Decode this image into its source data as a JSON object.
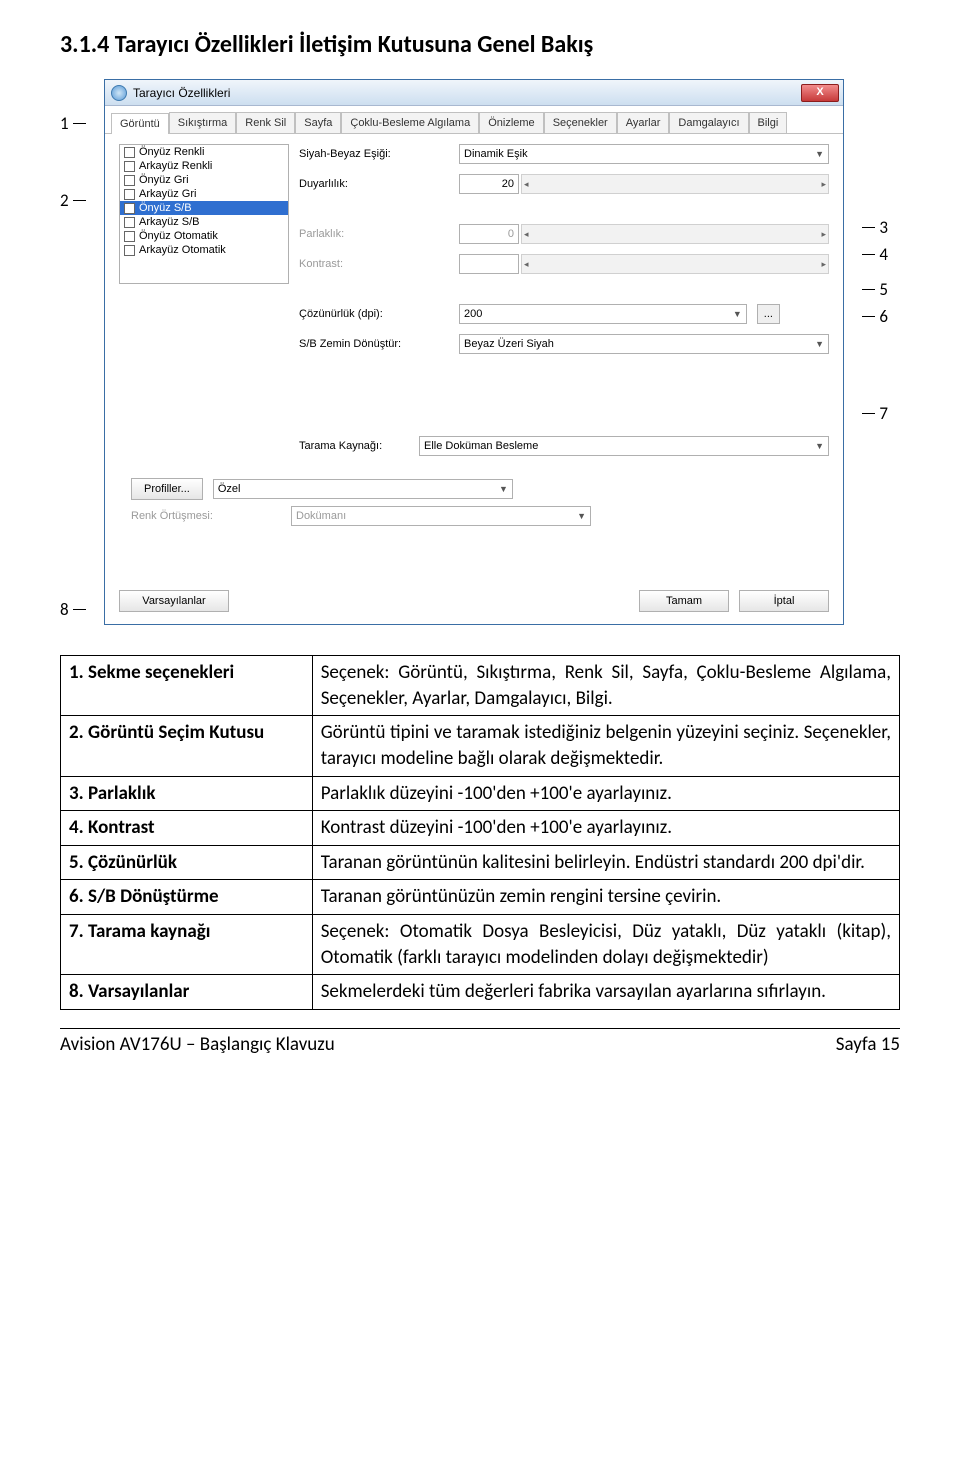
{
  "heading": "3.1.4 Tarayıcı Özellikleri İletişim Kutusuna Genel Bakış",
  "annot": {
    "left": [
      "1",
      "2",
      "8"
    ],
    "right": [
      "3",
      "4",
      "5",
      "6",
      "7"
    ]
  },
  "dialog": {
    "title": "Tarayıcı Özellikleri",
    "close": "X",
    "tabs": [
      "Görüntü",
      "Sıkıştırma",
      "Renk Sil",
      "Sayfa",
      "Çoklu-Besleme Algılama",
      "Önizleme",
      "Seçenekler",
      "Ayarlar",
      "Damgalayıcı",
      "Bilgi"
    ],
    "list": [
      {
        "label": "Önyüz Renkli",
        "checked": false,
        "selected": false
      },
      {
        "label": "Arkayüz Renkli",
        "checked": false,
        "selected": false
      },
      {
        "label": "Önyüz Gri",
        "checked": false,
        "selected": false
      },
      {
        "label": "Arkayüz Gri",
        "checked": false,
        "selected": false
      },
      {
        "label": "Önyüz S/B",
        "checked": true,
        "selected": true
      },
      {
        "label": "Arkayüz S/B",
        "checked": false,
        "selected": false
      },
      {
        "label": "Önyüz Otomatik",
        "checked": false,
        "selected": false
      },
      {
        "label": "Arkayüz Otomatik",
        "checked": false,
        "selected": false
      }
    ],
    "props": {
      "thresholdLabel": "Siyah-Beyaz Eşiği:",
      "thresholdValue": "Dinamik Eşik",
      "sensitivityLabel": "Duyarlılık:",
      "sensitivityValue": "20",
      "brightnessLabel": "Parlaklık:",
      "brightnessValue": "0",
      "contrastLabel": "Kontrast:",
      "contrastValue": "",
      "resolutionLabel": "Çözünürlük (dpi):",
      "resolutionValue": "200",
      "resolutionExtra": "...",
      "invertLabel": "S/B Zemin Dönüştür:",
      "invertValue": "Beyaz Üzeri Siyah",
      "sourceLabel": "Tarama Kaynağı:",
      "sourceValue": "Elle Doküman Besleme",
      "profilesBtn": "Profiller...",
      "profilesField": "Özel",
      "overlapLabel": "Renk Örtüşmesi:",
      "overlapValue": "Dokümanı"
    },
    "footer": {
      "defaults": "Varsayılanlar",
      "ok": "Tamam",
      "cancel": "İptal"
    }
  },
  "table": [
    {
      "term": "1. Sekme seçenekleri",
      "def": "Seçenek: Görüntü, Sıkıştırma, Renk Sil, Sayfa, Çoklu-Besleme Algılama, Seçenekler, Ayarlar, Damgalayıcı, Bilgi."
    },
    {
      "term": "2. Görüntü Seçim Kutusu",
      "def": "Görüntü tipini ve taramak istediğiniz belgenin yüzeyini seçiniz. Seçenekler, tarayıcı modeline bağlı olarak değişmektedir."
    },
    {
      "term": "3. Parlaklık",
      "def": "Parlaklık düzeyini -100'den +100'e ayarlayınız."
    },
    {
      "term": "4. Kontrast",
      "def": "Kontrast düzeyini -100'den +100'e ayarlayınız."
    },
    {
      "term": "5. Çözünürlük",
      "def": "Taranan görüntünün kalitesini belirleyin. Endüstri standardı 200 dpi'dir."
    },
    {
      "term": "6. S/B Dönüştürme",
      "def": "Taranan görüntünüzün zemin rengini tersine çevirin."
    },
    {
      "term": "7. Tarama kaynağı",
      "def": "Seçenek: Otomatik Dosya Besleyicisi, Düz yataklı, Düz yataklı (kitap), Otomatik (farklı tarayıcı modelinden dolayı değişmektedir)"
    },
    {
      "term": "8. Varsayılanlar",
      "def": "Sekmelerdeki tüm değerleri fabrika varsayılan ayarlarına sıfırlayın."
    }
  ],
  "footer": {
    "left": "Avision AV176U – Başlangıç Klavuzu",
    "right": "Sayfa 15"
  }
}
